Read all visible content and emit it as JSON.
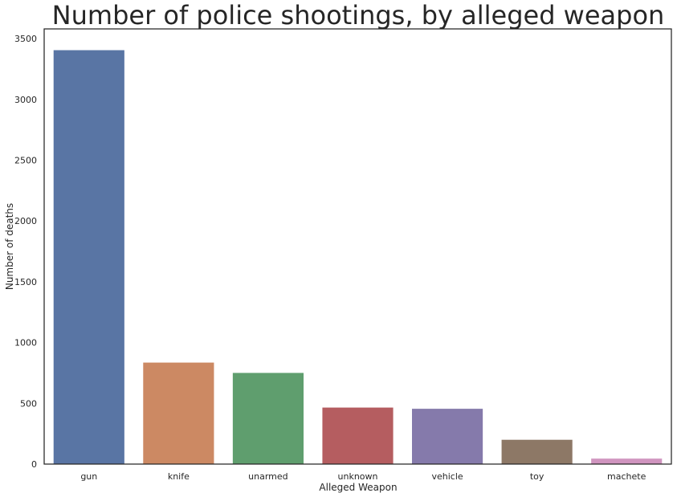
{
  "chart_data": {
    "type": "bar",
    "title": "Number of police shootings, by alleged weapon",
    "xlabel": "Alleged Weapon",
    "ylabel": "Number of deaths",
    "categories": [
      "gun",
      "knife",
      "unarmed",
      "unknown",
      "vehicle",
      "toy",
      "machete"
    ],
    "values": [
      3405,
      835,
      750,
      465,
      455,
      200,
      45
    ],
    "ylim": [
      0,
      3580
    ],
    "yticks": [
      "0",
      "500",
      "1000",
      "1500",
      "2000",
      "2500",
      "3000",
      "3500"
    ],
    "colors": [
      "#5975a4",
      "#cc8963",
      "#5f9e6e",
      "#b55d60",
      "#857aab",
      "#8d7866",
      "#d095bf"
    ],
    "grid": false,
    "legend": "none"
  }
}
